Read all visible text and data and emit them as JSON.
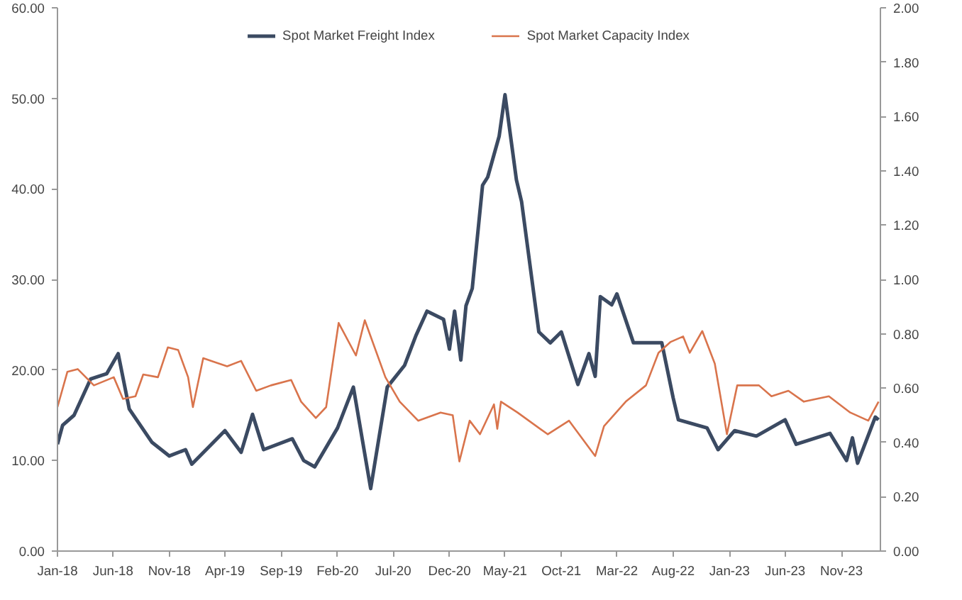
{
  "chart_data": {
    "type": "line",
    "legend": "top",
    "grid": false,
    "xlim": [
      "2018-01-01",
      "2024-02-15"
    ],
    "xticks": [
      {
        "value": "2018-01-01",
        "label": "Jan-18"
      },
      {
        "value": "2018-06-01",
        "label": "Jun-18"
      },
      {
        "value": "2018-11-01",
        "label": "Nov-18"
      },
      {
        "value": "2019-04-01",
        "label": "Apr-19"
      },
      {
        "value": "2019-09-01",
        "label": "Sep-19"
      },
      {
        "value": "2020-02-01",
        "label": "Feb-20"
      },
      {
        "value": "2020-07-01",
        "label": "Jul-20"
      },
      {
        "value": "2020-12-01",
        "label": "Dec-20"
      },
      {
        "value": "2021-05-01",
        "label": "May-21"
      },
      {
        "value": "2021-10-01",
        "label": "Oct-21"
      },
      {
        "value": "2022-03-01",
        "label": "Mar-22"
      },
      {
        "value": "2022-08-01",
        "label": "Aug-22"
      },
      {
        "value": "2023-01-01",
        "label": "Jan-23"
      },
      {
        "value": "2023-06-01",
        "label": "Jun-23"
      },
      {
        "value": "2023-11-01",
        "label": "Nov-23"
      }
    ],
    "ylim": [
      0,
      60
    ],
    "yticks": [
      {
        "value": 0,
        "label": "0.00"
      },
      {
        "value": 10,
        "label": "10.00"
      },
      {
        "value": 20,
        "label": "20.00"
      },
      {
        "value": 30,
        "label": "30.00"
      },
      {
        "value": 40,
        "label": "40.00"
      },
      {
        "value": 50,
        "label": "50.00"
      },
      {
        "value": 60,
        "label": "60.00"
      }
    ],
    "y2lim": [
      0,
      2
    ],
    "y2ticks": [
      {
        "value": 0,
        "label": "0.00"
      },
      {
        "value": 0.2,
        "label": "0.20"
      },
      {
        "value": 0.4,
        "label": "0.40"
      },
      {
        "value": 0.6,
        "label": "0.60"
      },
      {
        "value": 0.8,
        "label": "0.80"
      },
      {
        "value": 1.0,
        "label": "1.00"
      },
      {
        "value": 1.2,
        "label": "1.20"
      },
      {
        "value": 1.4,
        "label": "1.40"
      },
      {
        "value": 1.6,
        "label": "1.60"
      },
      {
        "value": 1.8,
        "label": "1.80"
      },
      {
        "value": 2.0,
        "label": "2.00"
      }
    ],
    "series": [
      {
        "name": "Spot Market Freight Index",
        "color": "#3b4a62",
        "x": [
          "2018-01-01",
          "2018-01-15",
          "2018-02-15",
          "2018-04-01",
          "2018-05-15",
          "2018-06-15",
          "2018-07-15",
          "2018-09-15",
          "2018-11-01",
          "2018-12-15",
          "2019-01-01",
          "2019-04-01",
          "2019-05-15",
          "2019-06-15",
          "2019-07-15",
          "2019-10-01",
          "2019-11-01",
          "2019-12-01",
          "2020-02-01",
          "2020-03-15",
          "2020-05-01",
          "2020-06-15",
          "2020-08-01",
          "2020-09-01",
          "2020-10-01",
          "2020-11-15",
          "2020-12-01",
          "2020-12-15",
          "2021-01-01",
          "2021-01-15",
          "2021-02-01",
          "2021-03-01",
          "2021-03-15",
          "2021-04-15",
          "2021-05-01",
          "2021-06-01",
          "2021-06-15",
          "2021-08-01",
          "2021-09-01",
          "2021-10-01",
          "2021-11-15",
          "2021-12-15",
          "2022-01-01",
          "2022-01-15",
          "2022-02-15",
          "2022-03-01",
          "2022-04-15",
          "2022-07-01",
          "2022-08-01",
          "2022-08-15",
          "2022-11-01",
          "2022-12-01",
          "2023-01-15",
          "2023-03-15",
          "2023-06-01",
          "2023-07-01",
          "2023-10-01",
          "2023-11-15",
          "2023-12-01",
          "2023-12-15",
          "2024-02-01",
          "2024-02-10"
        ],
        "values": [
          11.8,
          13.9,
          15.0,
          19.0,
          19.6,
          21.8,
          15.7,
          12.0,
          10.5,
          11.2,
          9.6,
          13.3,
          10.9,
          15.1,
          11.2,
          12.4,
          10.0,
          9.3,
          13.6,
          18.1,
          6.9,
          18.1,
          20.5,
          23.8,
          26.5,
          25.6,
          22.3,
          26.5,
          21.1,
          27.1,
          29.0,
          40.4,
          41.3,
          45.8,
          50.4,
          41.0,
          38.6,
          24.2,
          23.0,
          24.2,
          18.4,
          21.8,
          19.3,
          28.1,
          27.2,
          28.4,
          23.0,
          23.0,
          16.9,
          14.5,
          13.6,
          11.2,
          13.3,
          12.7,
          14.5,
          11.8,
          13.0,
          10.0,
          12.5,
          9.7,
          14.8,
          14.5
        ]
      },
      {
        "name": "Spot Market Capacity Index",
        "color": "#d9744c",
        "axis": "y2",
        "x": [
          "2018-01-01",
          "2018-01-28",
          "2018-02-25",
          "2018-04-10",
          "2018-06-03",
          "2018-06-28",
          "2018-08-01",
          "2018-08-22",
          "2018-10-01",
          "2018-10-28",
          "2018-11-25",
          "2018-12-22",
          "2019-01-04",
          "2019-02-01",
          "2019-04-07",
          "2019-05-15",
          "2019-06-25",
          "2019-08-04",
          "2019-09-28",
          "2019-10-25",
          "2019-12-04",
          "2020-01-01",
          "2020-02-04",
          "2020-03-22",
          "2020-04-15",
          "2020-06-10",
          "2020-07-19",
          "2020-09-07",
          "2020-11-07",
          "2020-12-10",
          "2020-12-28",
          "2021-01-25",
          "2021-02-22",
          "2021-04-01",
          "2021-04-10",
          "2021-04-20",
          "2021-06-04",
          "2021-08-25",
          "2021-10-22",
          "2022-01-01",
          "2022-01-25",
          "2022-03-25",
          "2022-05-19",
          "2022-06-22",
          "2022-07-25",
          "2022-08-28",
          "2022-09-15",
          "2022-10-19",
          "2022-11-22",
          "2022-12-25",
          "2023-01-22",
          "2023-03-22",
          "2023-04-25",
          "2023-06-10",
          "2023-07-22",
          "2023-09-28",
          "2023-11-25",
          "2024-01-13",
          "2024-02-10"
        ],
        "values": [
          0.53,
          0.66,
          0.67,
          0.61,
          0.64,
          0.56,
          0.57,
          0.65,
          0.64,
          0.75,
          0.74,
          0.64,
          0.53,
          0.71,
          0.68,
          0.7,
          0.59,
          0.61,
          0.63,
          0.55,
          0.49,
          0.53,
          0.84,
          0.72,
          0.85,
          0.64,
          0.55,
          0.48,
          0.51,
          0.5,
          0.33,
          0.48,
          0.43,
          0.54,
          0.45,
          0.55,
          0.51,
          0.43,
          0.48,
          0.35,
          0.46,
          0.55,
          0.61,
          0.73,
          0.77,
          0.79,
          0.73,
          0.81,
          0.69,
          0.43,
          0.61,
          0.61,
          0.57,
          0.59,
          0.55,
          0.57,
          0.51,
          0.48,
          0.55
        ]
      }
    ]
  }
}
